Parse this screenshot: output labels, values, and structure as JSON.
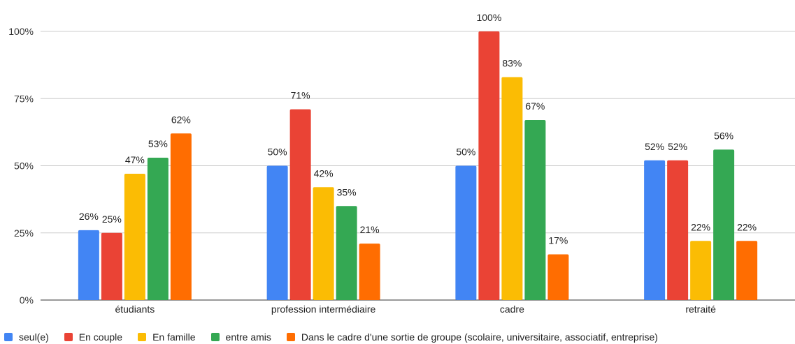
{
  "chart_data": {
    "type": "bar",
    "categories": [
      "étudiants",
      "profession intermédiaire",
      "cadre",
      "retraité"
    ],
    "series": [
      {
        "name": "seul(e)",
        "color": "#4285F4",
        "values": [
          26,
          50,
          50,
          52
        ],
        "labels": [
          "26%",
          "50%",
          "50%",
          "52%"
        ]
      },
      {
        "name": "En couple",
        "color": "#EA4335",
        "values": [
          25,
          71,
          100,
          52
        ],
        "labels": [
          "25%",
          "71%",
          "100%",
          "52%"
        ]
      },
      {
        "name": "En famille",
        "color": "#FBBC04",
        "values": [
          47,
          42,
          83,
          22
        ],
        "labels": [
          "47%",
          "42%",
          "83%",
          "22%"
        ]
      },
      {
        "name": "entre amis",
        "color": "#34A853",
        "values": [
          53,
          35,
          67,
          56
        ],
        "labels": [
          "53%",
          "35%",
          "67%",
          "56%"
        ]
      },
      {
        "name": "Dans le cadre d'une sortie de groupe (scolaire, universitaire, associatif, entreprise)",
        "color": "#FF6D01",
        "values": [
          62,
          21,
          17,
          22
        ],
        "labels": [
          "62%",
          "21%",
          "17%",
          "22%"
        ]
      }
    ],
    "yticks": [
      "0%",
      "25%",
      "50%",
      "75%",
      "100%"
    ],
    "ylim": [
      0,
      100
    ],
    "title": "",
    "xlabel": "",
    "ylabel": "",
    "grid": true,
    "legend_position": "bottom-left"
  }
}
